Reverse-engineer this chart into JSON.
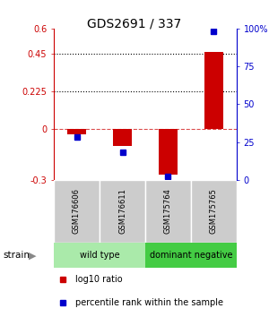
{
  "title": "GDS2691 / 337",
  "samples": [
    "GSM176606",
    "GSM176611",
    "GSM175764",
    "GSM175765"
  ],
  "log10_ratio": [
    -0.03,
    -0.1,
    -0.27,
    0.46
  ],
  "percentile_rank": [
    28,
    18,
    2,
    98
  ],
  "ylim_left": [
    -0.3,
    0.6
  ],
  "ylim_right": [
    0,
    100
  ],
  "left_ticks": [
    -0.3,
    0,
    0.225,
    0.45,
    0.6
  ],
  "right_ticks": [
    0,
    25,
    50,
    75,
    100
  ],
  "dotted_lines": [
    0.225,
    0.45
  ],
  "bar_color_red": "#cc0000",
  "bar_color_blue": "#0000cc",
  "bar_width": 0.4,
  "background_color": "#ffffff",
  "group_label_wt_color": "#aaeaaa",
  "group_label_dn_color": "#44cc44",
  "sample_row_color": "#cccccc",
  "group_wt_label": "wild type",
  "group_dn_label": "dominant negative",
  "legend_red_label": "log10 ratio",
  "legend_blue_label": "percentile rank within the sample",
  "strain_label": "strain"
}
